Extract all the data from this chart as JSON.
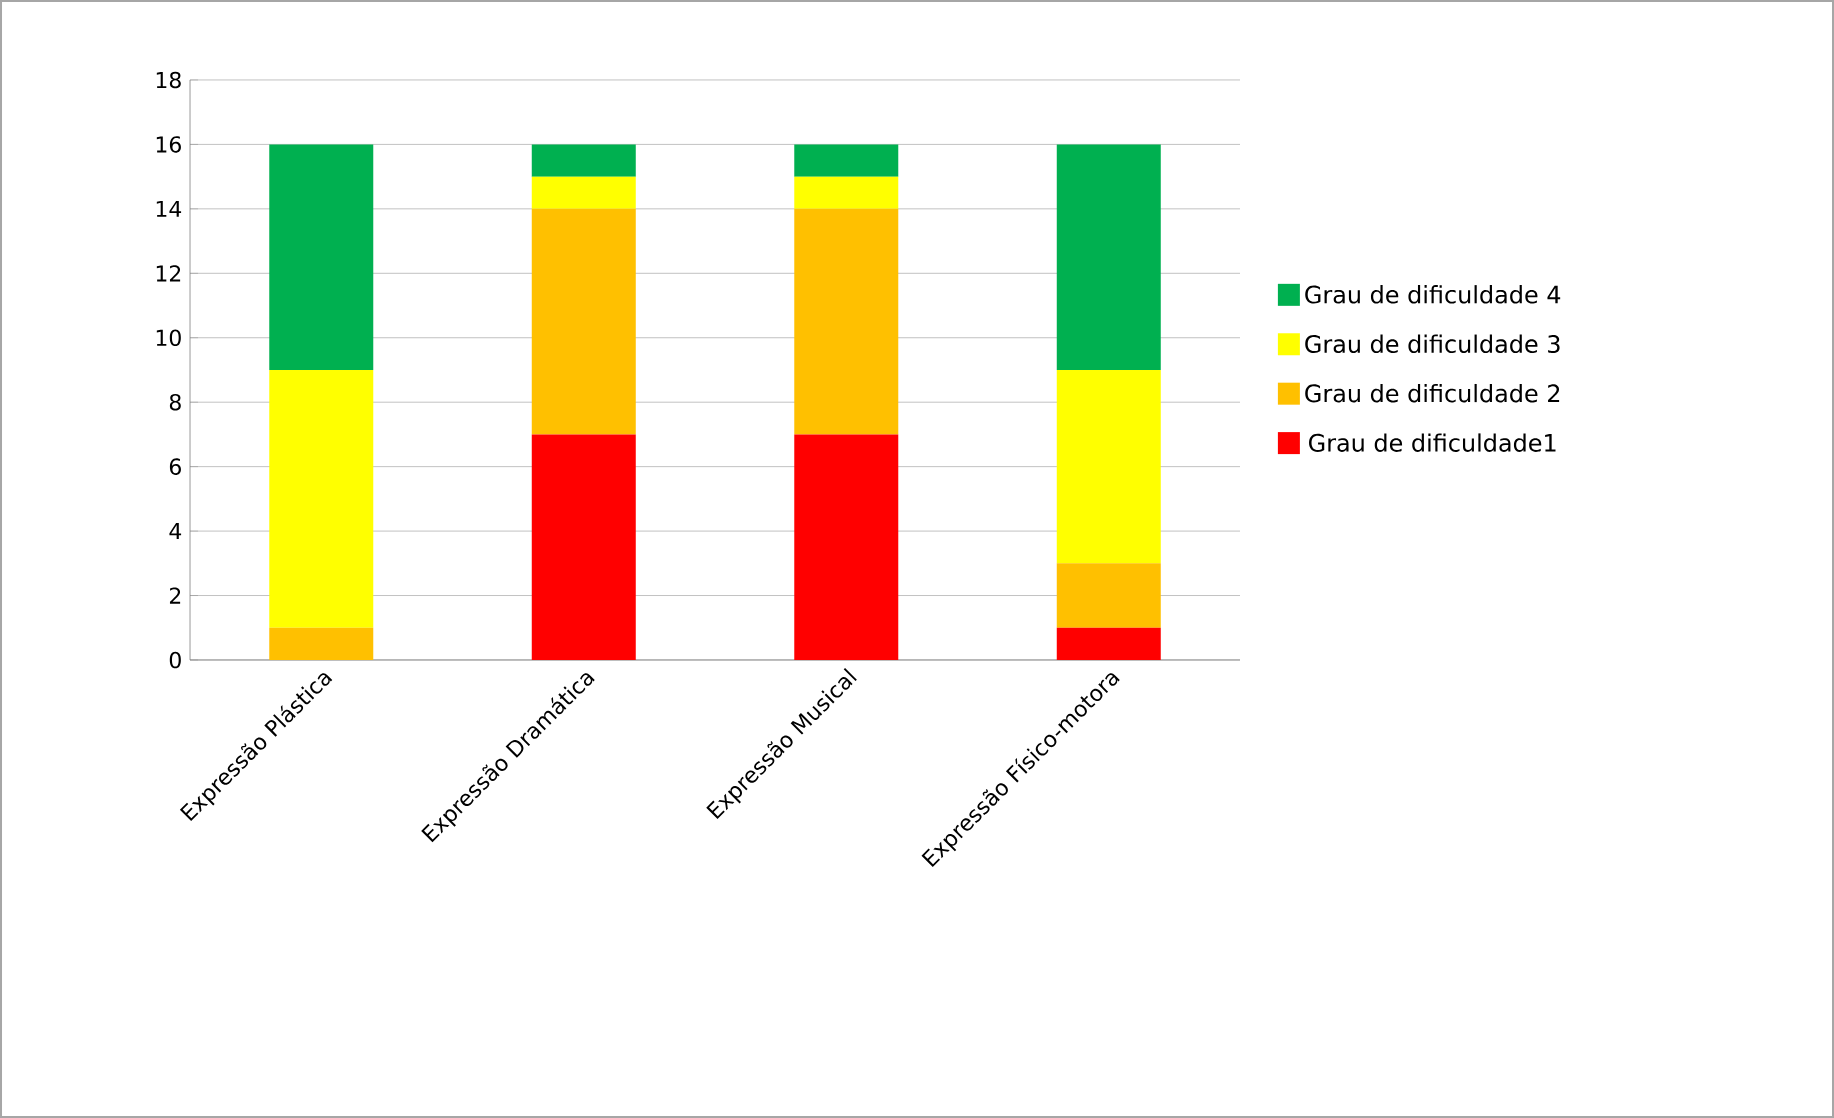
{
  "chart_data": {
    "type": "bar",
    "stacked": true,
    "categories": [
      "Expressão Plástica",
      "Expressão Dramática",
      "Expressão Musical",
      "Expressão Físico-motora"
    ],
    "series": [
      {
        "name": "Grau de dificuldade1",
        "color": "#ff0000",
        "values": [
          0,
          7,
          7,
          1
        ]
      },
      {
        "name": "Grau de dificuldade 2",
        "color": "#ffc000",
        "values": [
          1,
          7,
          7,
          2
        ]
      },
      {
        "name": "Grau de dificuldade 3",
        "color": "#ffff00",
        "values": [
          8,
          1,
          1,
          6
        ]
      },
      {
        "name": "Grau de dificuldade 4",
        "color": "#00b050",
        "values": [
          7,
          1,
          1,
          7
        ]
      }
    ],
    "ylim": [
      0,
      18
    ],
    "yticks": [
      0,
      2,
      4,
      6,
      8,
      10,
      12,
      14,
      16,
      18
    ],
    "grid": "y",
    "legend": "right"
  }
}
